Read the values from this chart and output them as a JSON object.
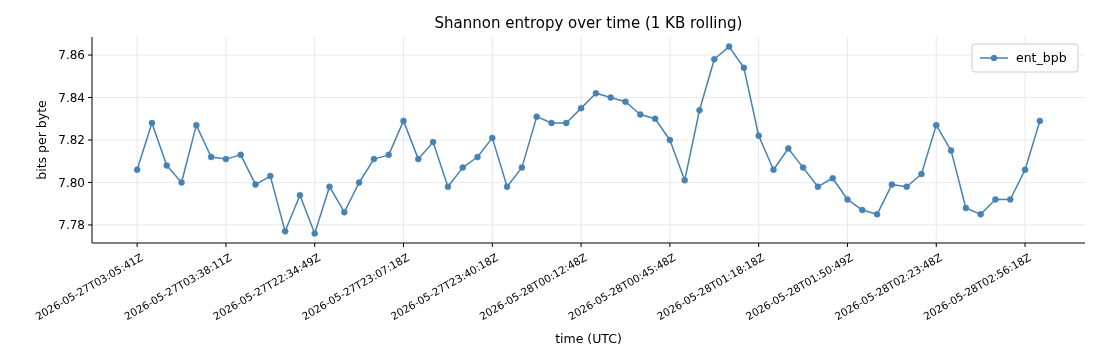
{
  "chart_data": {
    "type": "line",
    "title": "Shannon entropy over time (1 KB rolling)",
    "xlabel": "time (UTC)",
    "ylabel": "bits per byte",
    "categories": [
      "2026-05-27T03:05:41Z",
      null,
      null,
      null,
      null,
      null,
      "2026-05-27T03:38:11Z",
      null,
      null,
      null,
      null,
      null,
      "2026-05-27T22:34:49Z",
      null,
      null,
      null,
      null,
      null,
      "2026-05-27T23:07:18Z",
      null,
      null,
      null,
      null,
      null,
      "2026-05-27T23:40:18Z",
      null,
      null,
      null,
      null,
      null,
      "2026-05-28T00:12:48Z",
      null,
      null,
      null,
      null,
      null,
      "2026-05-28T00:45:48Z",
      null,
      null,
      null,
      null,
      null,
      "2026-05-28T01:18:18Z",
      null,
      null,
      null,
      null,
      null,
      "2026-05-28T01:50:49Z",
      null,
      null,
      null,
      null,
      null,
      "2026-05-28T02:23:48Z",
      null,
      null,
      null,
      null,
      null,
      "2026-05-28T02:56:18Z",
      null
    ],
    "series": [
      {
        "name": "ent_bpb",
        "color": "#4682b4",
        "values": [
          7.806,
          7.828,
          7.808,
          7.8,
          7.827,
          7.812,
          7.811,
          7.813,
          7.799,
          7.803,
          7.777,
          7.794,
          7.776,
          7.798,
          7.786,
          7.8,
          7.811,
          7.813,
          7.829,
          7.811,
          7.819,
          7.798,
          7.807,
          7.812,
          7.821,
          7.798,
          7.807,
          7.831,
          7.828,
          7.828,
          7.835,
          7.842,
          7.84,
          7.838,
          7.832,
          7.83,
          7.82,
          7.801,
          7.834,
          7.858,
          7.864,
          7.854,
          7.822,
          7.806,
          7.816,
          7.807,
          7.798,
          7.802,
          7.792,
          7.787,
          7.785,
          7.799,
          7.798,
          7.804,
          7.827,
          7.815,
          7.788,
          7.785,
          7.792,
          7.792,
          7.806,
          7.829
        ]
      }
    ],
    "ylim": [
      7.7715,
      7.8685
    ],
    "yticks": [
      7.78,
      {
        "value": 7.8,
        "label": "7.80"
      },
      7.82,
      7.84,
      7.86
    ],
    "grid": true,
    "legend": "top right",
    "marker": "circle",
    "line_style": "solid"
  }
}
